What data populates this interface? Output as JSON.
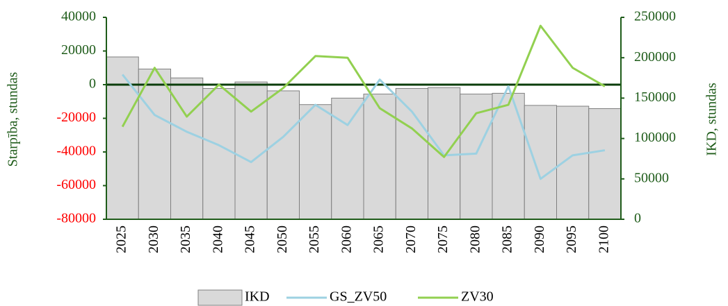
{
  "chart_data": {
    "type": "bar_line_combo",
    "y_label": "Starpība, stundas",
    "y2_label": "IKD, stundas",
    "categories": [
      "2025",
      "2030",
      "2035",
      "2040",
      "2045",
      "2050",
      "2055",
      "2060",
      "2065",
      "2070",
      "2075",
      "2080",
      "2085",
      "2090",
      "2095",
      "2100"
    ],
    "series": [
      {
        "name": "IKD",
        "type": "bar",
        "axis": "y2",
        "color": "#d9d9d9",
        "edge_color": "#7f7f7f",
        "values": [
          201000,
          186000,
          175000,
          162000,
          170000,
          159000,
          142000,
          150000,
          155000,
          162000,
          163000,
          155000,
          156000,
          141000,
          140000,
          137000
        ]
      },
      {
        "name": "GS_ZV50",
        "type": "line",
        "axis": "y",
        "color": "#9dd1e2",
        "values": [
          6000,
          -18000,
          -28000,
          -36000,
          -46000,
          -31000,
          -12000,
          -24000,
          3000,
          -16000,
          -42000,
          -41000,
          -1000,
          -56000,
          -42000,
          -39000
        ]
      },
      {
        "name": "ZV30",
        "type": "line",
        "axis": "y",
        "color": "#92d050",
        "values": [
          -25000,
          10000,
          -19000,
          0,
          -16000,
          -2000,
          17000,
          16000,
          -14000,
          -26000,
          -43000,
          -17000,
          -12000,
          35000,
          10000,
          -1000
        ]
      }
    ],
    "ylim": [
      -80000,
      40000
    ],
    "yticks": [
      -80000,
      -60000,
      -40000,
      -20000,
      0,
      20000,
      40000
    ],
    "y2lim": [
      0,
      250000
    ],
    "y2ticks": [
      0,
      50000,
      100000,
      150000,
      200000,
      250000
    ],
    "axis_color": "#1f5c1a",
    "negative_tick_color": "#ff0000",
    "legend": "bottom"
  }
}
